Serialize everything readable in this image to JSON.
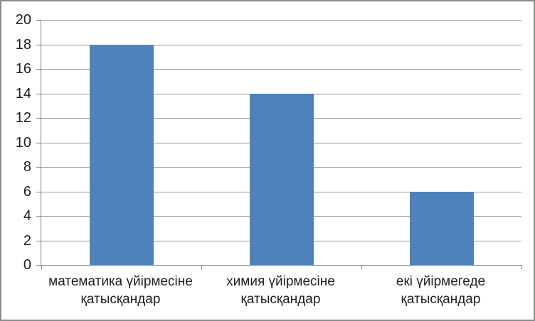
{
  "chart_data": {
    "type": "bar",
    "title": "",
    "xlabel": "",
    "ylabel": "",
    "categories": [
      "математика үйірмесіне қатысқандар",
      "химия үйірмесіне қатысқандар",
      "екі үйірмегеде қатысқандар"
    ],
    "values": [
      18,
      14,
      6
    ],
    "ylim": [
      0,
      20
    ],
    "ytick_step": 2,
    "yticks": [
      0,
      2,
      4,
      6,
      8,
      10,
      12,
      14,
      16,
      18,
      20
    ],
    "grid": true,
    "legend": false,
    "bar_color": "#4f81bd",
    "gridline_color": "#969696",
    "axis_color": "#868686",
    "frame_border_color": "#8c8c8c",
    "text_color": "#1f1f1f"
  }
}
